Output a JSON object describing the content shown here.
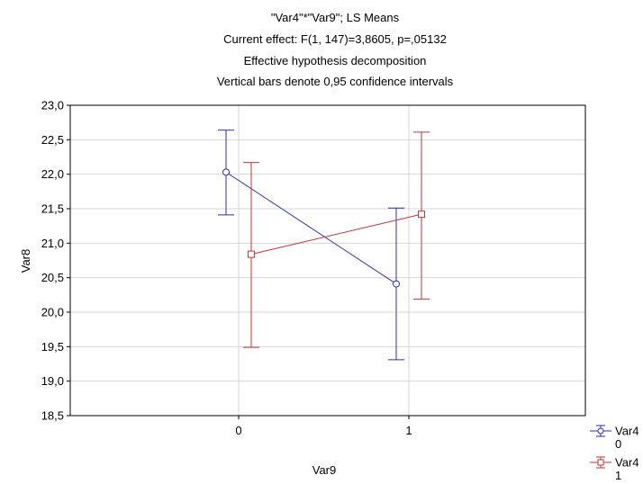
{
  "chart_data": {
    "type": "line",
    "title_lines": [
      "\"Var4\"*\"Var9\"; LS Means",
      "Current effect: F(1, 147)=3,8605, p=,05132",
      "Effective hypothesis decomposition",
      "Vertical bars denote 0,95 confidence intervals"
    ],
    "xlabel": "Var9",
    "ylabel": "Var8",
    "categories": [
      "0",
      "1"
    ],
    "ylim": [
      18.5,
      23.0
    ],
    "y_ticks": [
      18.5,
      19.0,
      19.5,
      20.0,
      20.5,
      21.0,
      21.5,
      22.0,
      22.5,
      23.0
    ],
    "y_tick_labels": [
      "18,5",
      "19,0",
      "19,5",
      "20,0",
      "20,5",
      "21,0",
      "21,5",
      "22,0",
      "22,5",
      "23,0"
    ],
    "grid": true,
    "legend_position": "bottom-right",
    "series": [
      {
        "name": "Var4",
        "legend_value": "0",
        "color": "#2f2fb0",
        "marker": "circle",
        "values": [
          22.03,
          20.41
        ],
        "ci_lower": [
          21.41,
          19.31
        ],
        "ci_upper": [
          22.64,
          21.51
        ]
      },
      {
        "name": "Var4",
        "legend_value": "1",
        "color": "#c0363a",
        "marker": "square",
        "values": [
          20.84,
          21.42
        ],
        "ci_lower": [
          19.49,
          20.19
        ],
        "ci_upper": [
          22.17,
          22.61
        ]
      }
    ]
  }
}
